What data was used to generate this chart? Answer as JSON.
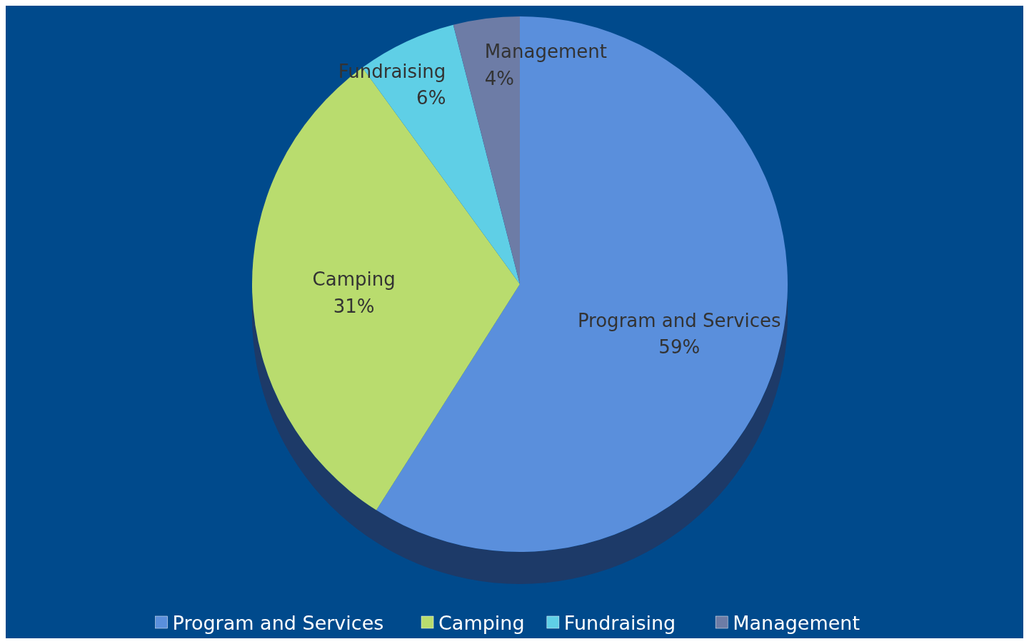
{
  "chart_data": {
    "type": "pie",
    "categories": [
      "Program and Services",
      "Camping",
      "Fundraising",
      "Management"
    ],
    "values": [
      59,
      31,
      6,
      4
    ],
    "colors": [
      "#5a8fdc",
      "#b9dc6e",
      "#5fcfe6",
      "#6d7ca6"
    ],
    "value_labels": [
      "59%",
      "31%",
      "6%",
      "4%"
    ],
    "legend": "bottom"
  }
}
